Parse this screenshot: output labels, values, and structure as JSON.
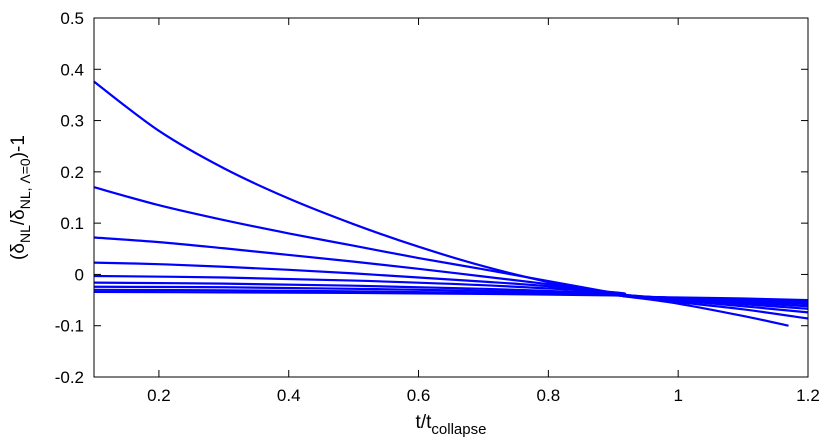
{
  "chart_data": {
    "type": "line",
    "xlabel_main": "t/t",
    "xlabel_sub": "collapse",
    "ylabel_parts": {
      "open": "(δ",
      "sub1": "NL",
      "mid": "/δ",
      "sub2": "NL, Λ=0",
      "close": ")-1"
    },
    "xlim": [
      0.1,
      1.2
    ],
    "ylim": [
      -0.2,
      0.5
    ],
    "xticks": [
      0.2,
      0.4,
      0.6,
      0.8,
      1,
      1.2
    ],
    "xtick_labels": [
      "0.2",
      "0.4",
      "0.6",
      "0.8",
      "1",
      "1.2"
    ],
    "yticks": [
      -0.2,
      -0.1,
      0,
      0.1,
      0.2,
      0.3,
      0.4,
      0.5
    ],
    "ytick_labels": [
      "-0.2",
      "-0.1",
      "0",
      "0.1",
      "0.2",
      "0.3",
      "0.4",
      "0.5"
    ],
    "grid": false,
    "line_color": "#0000ff",
    "series": [
      {
        "x": [
          0.1,
          0.2,
          0.3,
          0.4,
          0.5,
          0.6,
          0.7,
          0.8,
          0.9,
          0.92,
          1.0,
          1.1,
          1.17
        ],
        "y": [
          0.376,
          0.28,
          0.207,
          0.148,
          0.098,
          0.054,
          0.016,
          -0.015,
          -0.039,
          -0.043,
          -0.057,
          -0.081,
          -0.1
        ]
      },
      {
        "x": [
          0.1,
          0.2,
          0.3,
          0.4,
          0.5,
          0.6,
          0.7,
          0.8,
          0.9,
          0.92,
          1.0,
          1.1,
          1.2
        ],
        "y": [
          0.17,
          0.135,
          0.106,
          0.08,
          0.056,
          0.032,
          0.01,
          -0.013,
          -0.036,
          -0.042,
          -0.054,
          -0.068,
          -0.086
        ]
      },
      {
        "x": [
          0.1,
          0.2,
          0.3,
          0.4,
          0.5,
          0.6,
          0.7,
          0.8,
          0.9,
          0.92,
          1.0,
          1.1,
          1.2
        ],
        "y": [
          0.072,
          0.063,
          0.051,
          0.038,
          0.025,
          0.011,
          -0.004,
          -0.019,
          -0.036,
          -0.041,
          -0.051,
          -0.062,
          -0.074
        ]
      },
      {
        "x": [
          0.1,
          0.2,
          0.3,
          0.4,
          0.5,
          0.6,
          0.7,
          0.8,
          0.9,
          0.92,
          1.0,
          1.1,
          1.2
        ],
        "y": [
          0.023,
          0.02,
          0.015,
          0.009,
          0.002,
          -0.006,
          -0.014,
          -0.023,
          -0.035,
          -0.04,
          -0.049,
          -0.058,
          -0.067
        ]
      },
      {
        "x": [
          0.1,
          0.3,
          0.5,
          0.7,
          0.9,
          0.92,
          1.0,
          1.1,
          1.2
        ],
        "y": [
          -0.003,
          -0.006,
          -0.012,
          -0.021,
          -0.035,
          -0.04,
          -0.048,
          -0.055,
          -0.062
        ]
      },
      {
        "x": [
          0.1,
          0.3,
          0.5,
          0.7,
          0.9,
          0.92,
          1.0,
          1.1,
          1.2
        ],
        "y": [
          -0.016,
          -0.018,
          -0.022,
          -0.028,
          -0.037,
          -0.041,
          -0.047,
          -0.052,
          -0.058
        ]
      },
      {
        "x": [
          0.1,
          0.3,
          0.5,
          0.7,
          0.9,
          0.92,
          1.0,
          1.1,
          1.2
        ],
        "y": [
          -0.024,
          -0.025,
          -0.028,
          -0.032,
          -0.039,
          -0.042,
          -0.046,
          -0.05,
          -0.055
        ]
      },
      {
        "x": [
          0.1,
          0.3,
          0.5,
          0.7,
          0.9,
          0.92,
          1.0,
          1.1,
          1.2
        ],
        "y": [
          -0.03,
          -0.031,
          -0.033,
          -0.036,
          -0.04,
          -0.042,
          -0.046,
          -0.049,
          -0.052
        ]
      },
      {
        "x": [
          0.1,
          0.3,
          0.5,
          0.7,
          0.9,
          0.92,
          1.0,
          1.1,
          1.2
        ],
        "y": [
          -0.034,
          -0.035,
          -0.036,
          -0.038,
          -0.041,
          -0.043,
          -0.045,
          -0.047,
          -0.05
        ]
      }
    ]
  }
}
